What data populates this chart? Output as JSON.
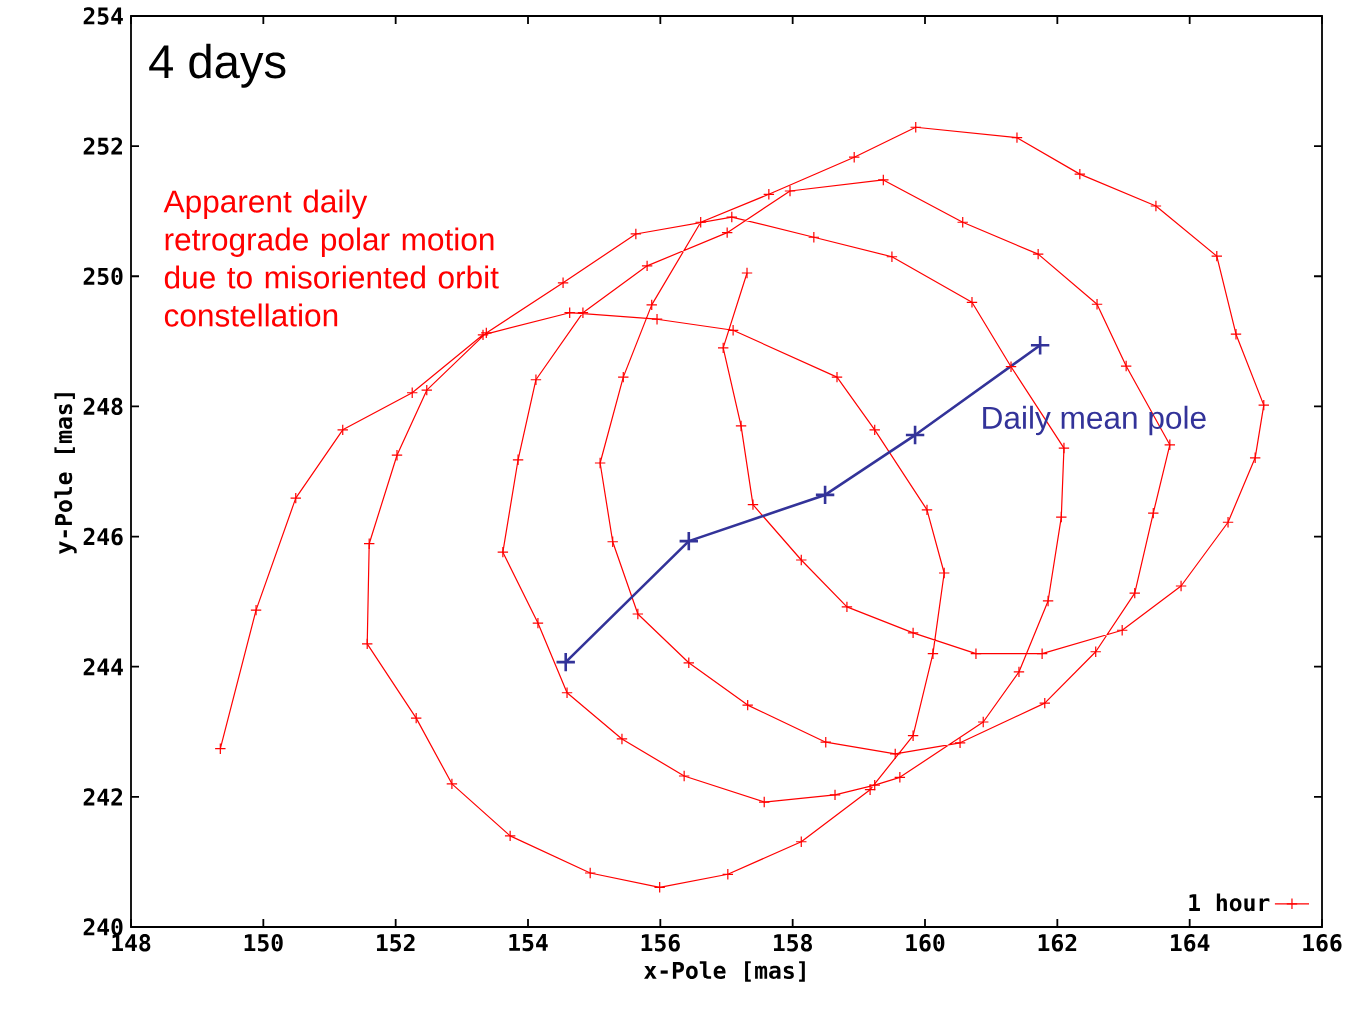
{
  "chart_data": {
    "type": "line",
    "title": "4 days",
    "xlabel": "x-Pole [mas]",
    "ylabel": "y-Pole [mas]",
    "xlim": [
      148,
      166
    ],
    "xticks": [
      148,
      150,
      152,
      154,
      156,
      158,
      160,
      162,
      164,
      166
    ],
    "ylim": [
      240,
      254
    ],
    "yticks": [
      240,
      242,
      244,
      246,
      248,
      250,
      252,
      254
    ],
    "legend": "bottom right",
    "annotations": [
      "Apparent daily retrograde polar motion due to misoriented orbit constellation",
      "Daily mean pole"
    ],
    "series": [
      {
        "name": "1 hour",
        "color": "#ff0000",
        "marker": "cross",
        "x": [
          157.31,
          156.95,
          157.22,
          157.4,
          158.13,
          158.82,
          159.82,
          160.77,
          161.77,
          162.98,
          163.87,
          164.58,
          164.99,
          165.12,
          164.7,
          164.41,
          163.49,
          162.34,
          161.39,
          159.86,
          158.93,
          157.64,
          156.61,
          155.87,
          155.44,
          155.09,
          155.28,
          155.66,
          156.43,
          157.32,
          158.5,
          159.55,
          160.53,
          161.81,
          162.58,
          163.17,
          163.45,
          163.7,
          163.04,
          162.6,
          161.71,
          160.57,
          159.37,
          157.96,
          157.01,
          155.8,
          154.83,
          154.12,
          153.85,
          153.62,
          154.15,
          154.59,
          155.42,
          156.36,
          157.57,
          158.64,
          159.24,
          159.62,
          160.88,
          161.42,
          161.86,
          162.06,
          162.1,
          161.3,
          160.71,
          159.5,
          158.32,
          157.08,
          155.63,
          154.53,
          153.37,
          152.47,
          152.02,
          151.6,
          151.57,
          152.31,
          152.85,
          153.73,
          154.94,
          155.99,
          157.02,
          158.13,
          159.17,
          159.82,
          160.12,
          160.29,
          160.03,
          159.24,
          158.67,
          157.1,
          155.95,
          154.63,
          153.32,
          152.25,
          151.2,
          150.49,
          149.89,
          149.35
        ],
        "values": [
          250.05,
          248.9,
          247.7,
          246.49,
          245.64,
          244.92,
          244.52,
          244.2,
          244.2,
          244.56,
          245.24,
          246.22,
          247.21,
          248.02,
          249.11,
          250.31,
          251.08,
          251.57,
          252.13,
          252.29,
          251.83,
          251.26,
          250.83,
          249.56,
          248.45,
          247.13,
          245.92,
          244.81,
          244.06,
          243.41,
          242.84,
          242.66,
          242.83,
          243.44,
          244.23,
          245.13,
          246.36,
          247.41,
          248.62,
          249.57,
          250.34,
          250.83,
          251.48,
          251.31,
          250.67,
          250.16,
          249.44,
          248.41,
          247.18,
          245.76,
          244.67,
          243.6,
          242.89,
          242.32,
          241.92,
          242.03,
          242.18,
          242.3,
          243.15,
          243.92,
          245.01,
          246.3,
          247.36,
          248.61,
          249.6,
          250.3,
          250.6,
          250.91,
          250.65,
          249.9,
          249.13,
          248.25,
          247.25,
          245.89,
          244.35,
          243.21,
          242.2,
          241.4,
          240.83,
          240.61,
          240.81,
          241.31,
          242.11,
          242.94,
          244.2,
          245.44,
          246.41,
          247.64,
          248.45,
          249.17,
          249.34,
          249.44,
          249.1,
          248.21,
          247.64,
          246.59,
          244.87,
          242.74
        ]
      },
      {
        "color": "#333399",
        "marker": "cross",
        "x": [
          161.74,
          159.85,
          158.49,
          156.43,
          154.57
        ],
        "values": [
          248.94,
          247.56,
          246.64,
          245.93,
          244.07
        ]
      }
    ]
  }
}
